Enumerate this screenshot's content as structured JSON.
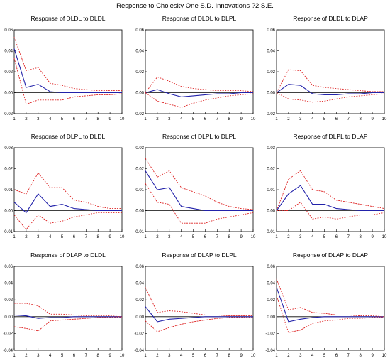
{
  "figure_title": "Response to Cholesky One S.D. Innovations ?2 S.E.",
  "colors": {
    "response": "#2222aa",
    "band": "#dd2222",
    "zero": "#000000",
    "frame": "#000000"
  },
  "chart_data": [
    {
      "type": "line",
      "title": "Response of DLDL to DLDL",
      "x": [
        1,
        2,
        3,
        4,
        5,
        6,
        7,
        8,
        9,
        10
      ],
      "ylim": [
        -0.02,
        0.06
      ],
      "yticks": [
        -0.02,
        0.0,
        0.02,
        0.04,
        0.06
      ],
      "yticklabels": [
        "-0.02",
        "0.00",
        "0.02",
        "0.04",
        "0.06"
      ],
      "series": [
        {
          "role": "response",
          "values": [
            0.042,
            0.005,
            0.008,
            0.001,
            0.0,
            0.0,
            0.0,
            0.0,
            0.0,
            0.0
          ]
        },
        {
          "role": "upper",
          "values": [
            0.053,
            0.021,
            0.024,
            0.009,
            0.007,
            0.004,
            0.003,
            0.002,
            0.002,
            0.002
          ]
        },
        {
          "role": "lower",
          "values": [
            0.033,
            -0.011,
            -0.007,
            -0.007,
            -0.007,
            -0.004,
            -0.003,
            -0.002,
            -0.002,
            -0.001
          ]
        }
      ]
    },
    {
      "type": "line",
      "title": "Response of DLDL to DLPL",
      "x": [
        1,
        2,
        3,
        4,
        5,
        6,
        7,
        8,
        9,
        10
      ],
      "ylim": [
        -0.02,
        0.06
      ],
      "yticks": [
        -0.02,
        0.0,
        0.02,
        0.04,
        0.06
      ],
      "yticklabels": [
        "-0.02",
        "0.00",
        "0.02",
        "0.04",
        "0.06"
      ],
      "series": [
        {
          "role": "response",
          "values": [
            0.0,
            0.003,
            -0.001,
            -0.004,
            -0.003,
            -0.002,
            -0.001,
            -0.001,
            0.0,
            0.0
          ]
        },
        {
          "role": "upper",
          "values": [
            0.0,
            0.015,
            0.011,
            0.006,
            0.004,
            0.003,
            0.002,
            0.002,
            0.002,
            0.001
          ]
        },
        {
          "role": "lower",
          "values": [
            0.0,
            -0.008,
            -0.011,
            -0.014,
            -0.01,
            -0.007,
            -0.005,
            -0.003,
            -0.002,
            -0.001
          ]
        }
      ]
    },
    {
      "type": "line",
      "title": "Response of DLDL to DLAP",
      "x": [
        1,
        2,
        3,
        4,
        5,
        6,
        7,
        8,
        9,
        10
      ],
      "ylim": [
        -0.02,
        0.06
      ],
      "yticks": [
        -0.02,
        0.0,
        0.02,
        0.04,
        0.06
      ],
      "yticklabels": [
        "-0.02",
        "0.00",
        "0.02",
        "0.04",
        "0.06"
      ],
      "series": [
        {
          "role": "response",
          "values": [
            0.0,
            0.008,
            0.007,
            -0.001,
            -0.002,
            -0.002,
            -0.001,
            -0.001,
            0.0,
            0.0
          ]
        },
        {
          "role": "upper",
          "values": [
            0.0,
            0.022,
            0.021,
            0.007,
            0.005,
            0.004,
            0.003,
            0.002,
            0.001,
            0.001
          ]
        },
        {
          "role": "lower",
          "values": [
            0.0,
            -0.006,
            -0.007,
            -0.009,
            -0.008,
            -0.006,
            -0.004,
            -0.003,
            -0.002,
            -0.001
          ]
        }
      ]
    },
    {
      "type": "line",
      "title": "Response of DLPL to DLDL",
      "x": [
        1,
        2,
        3,
        4,
        5,
        6,
        7,
        8,
        9,
        10
      ],
      "ylim": [
        -0.01,
        0.03
      ],
      "yticks": [
        -0.01,
        0.0,
        0.01,
        0.02,
        0.03
      ],
      "yticklabels": [
        "-0.01",
        "0.00",
        "0.01",
        "0.02",
        "0.03"
      ],
      "series": [
        {
          "role": "response",
          "values": [
            0.004,
            -0.001,
            0.008,
            0.002,
            0.003,
            0.001,
            0.0005,
            0.0,
            0.0,
            0.0
          ]
        },
        {
          "role": "upper",
          "values": [
            0.01,
            0.008,
            0.018,
            0.011,
            0.011,
            0.005,
            0.004,
            0.002,
            0.001,
            0.001
          ]
        },
        {
          "role": "lower",
          "values": [
            -0.002,
            -0.009,
            -0.002,
            -0.006,
            -0.005,
            -0.003,
            -0.002,
            -0.001,
            -0.001,
            -0.001
          ]
        }
      ]
    },
    {
      "type": "line",
      "title": "Response of DLPL to DLPL",
      "x": [
        1,
        2,
        3,
        4,
        5,
        6,
        7,
        8,
        9,
        10
      ],
      "ylim": [
        -0.01,
        0.03
      ],
      "yticks": [
        -0.01,
        0.0,
        0.01,
        0.02,
        0.03
      ],
      "yticklabels": [
        "-0.01",
        "0.00",
        "0.01",
        "0.02",
        "0.03"
      ],
      "series": [
        {
          "role": "response",
          "values": [
            0.019,
            0.01,
            0.011,
            0.002,
            0.001,
            0.0,
            0.0,
            0.0,
            0.0,
            0.0
          ]
        },
        {
          "role": "upper",
          "values": [
            0.025,
            0.016,
            0.019,
            0.011,
            0.009,
            0.007,
            0.004,
            0.002,
            0.001,
            0.0005
          ]
        },
        {
          "role": "lower",
          "values": [
            0.013,
            0.004,
            0.003,
            -0.006,
            -0.006,
            -0.006,
            -0.004,
            -0.003,
            -0.002,
            -0.001
          ]
        }
      ]
    },
    {
      "type": "line",
      "title": "Response of DLPL to DLAP",
      "x": [
        1,
        2,
        3,
        4,
        5,
        6,
        7,
        8,
        9,
        10
      ],
      "ylim": [
        -0.01,
        0.03
      ],
      "yticks": [
        -0.01,
        0.0,
        0.01,
        0.02,
        0.03
      ],
      "yticklabels": [
        "-0.01",
        "0.00",
        "0.01",
        "0.02",
        "0.03"
      ],
      "series": [
        {
          "role": "response",
          "values": [
            0.0,
            0.008,
            0.012,
            0.003,
            0.003,
            0.001,
            0.0005,
            0.0,
            0.0,
            0.0
          ]
        },
        {
          "role": "upper",
          "values": [
            0.0,
            0.015,
            0.019,
            0.01,
            0.009,
            0.005,
            0.004,
            0.003,
            0.002,
            0.001
          ]
        },
        {
          "role": "lower",
          "values": [
            0.0,
            0.0,
            0.004,
            -0.004,
            -0.003,
            -0.004,
            -0.003,
            -0.002,
            -0.002,
            -0.001
          ]
        }
      ]
    },
    {
      "type": "line",
      "title": "Response of DLAP to DLDL",
      "x": [
        1,
        2,
        3,
        4,
        5,
        6,
        7,
        8,
        9,
        10
      ],
      "ylim": [
        -0.04,
        0.06
      ],
      "yticks": [
        -0.04,
        -0.02,
        0.0,
        0.02,
        0.04,
        0.06
      ],
      "yticklabels": [
        "-0.04",
        "-0.02",
        "0.00",
        "0.02",
        "0.04",
        "0.06"
      ],
      "series": [
        {
          "role": "response",
          "values": [
            0.002,
            0.001,
            -0.002,
            -0.001,
            -0.001,
            0.0,
            0.0,
            0.0,
            0.0,
            0.0
          ]
        },
        {
          "role": "upper",
          "values": [
            0.016,
            0.016,
            0.013,
            0.003,
            0.003,
            0.002,
            0.001,
            0.001,
            0.001,
            0.0
          ]
        },
        {
          "role": "lower",
          "values": [
            -0.012,
            -0.014,
            -0.017,
            -0.005,
            -0.004,
            -0.003,
            -0.002,
            -0.001,
            -0.001,
            -0.001
          ]
        }
      ]
    },
    {
      "type": "line",
      "title": "Response of DLAP to DLPL",
      "x": [
        1,
        2,
        3,
        4,
        5,
        6,
        7,
        8,
        9,
        10
      ],
      "ylim": [
        -0.04,
        0.06
      ],
      "yticks": [
        -0.04,
        -0.02,
        0.0,
        0.02,
        0.04,
        0.06
      ],
      "yticklabels": [
        "-0.04",
        "-0.02",
        "0.00",
        "0.02",
        "0.04",
        "0.06"
      ],
      "series": [
        {
          "role": "response",
          "values": [
            0.012,
            -0.006,
            -0.003,
            -0.002,
            -0.001,
            0.0,
            0.0,
            0.0,
            0.0,
            0.0
          ]
        },
        {
          "role": "upper",
          "values": [
            0.035,
            0.005,
            0.007,
            0.006,
            0.004,
            0.002,
            0.002,
            0.001,
            0.001,
            0.001
          ]
        },
        {
          "role": "lower",
          "values": [
            -0.005,
            -0.018,
            -0.013,
            -0.009,
            -0.006,
            -0.004,
            -0.002,
            -0.001,
            -0.001,
            -0.001
          ]
        }
      ]
    },
    {
      "type": "line",
      "title": "Response of DLAP to DLAP",
      "x": [
        1,
        2,
        3,
        4,
        5,
        6,
        7,
        8,
        9,
        10
      ],
      "ylim": [
        -0.04,
        0.06
      ],
      "yticks": [
        -0.04,
        -0.02,
        0.0,
        0.02,
        0.04,
        0.06
      ],
      "yticklabels": [
        "-0.04",
        "-0.02",
        "0.00",
        "0.02",
        "0.04",
        "0.06"
      ],
      "series": [
        {
          "role": "response",
          "values": [
            0.035,
            -0.006,
            -0.003,
            -0.001,
            0.0,
            0.0,
            0.0,
            0.0,
            0.0,
            0.0
          ]
        },
        {
          "role": "upper",
          "values": [
            0.045,
            0.008,
            0.011,
            0.005,
            0.004,
            0.002,
            0.002,
            0.001,
            0.001,
            0.0
          ]
        },
        {
          "role": "lower",
          "values": [
            0.025,
            -0.019,
            -0.016,
            -0.008,
            -0.005,
            -0.004,
            -0.002,
            -0.002,
            -0.001,
            -0.001
          ]
        }
      ]
    }
  ]
}
